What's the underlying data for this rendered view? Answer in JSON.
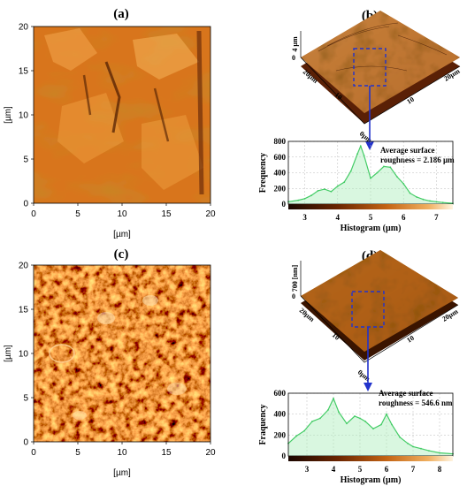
{
  "panels": {
    "a": {
      "label": "(a)",
      "xlabel": "[µm]",
      "ylabel": "[µm]",
      "xticks": [
        "0",
        "5",
        "10",
        "15",
        "20"
      ],
      "yticks": [
        "0",
        "5",
        "10",
        "15",
        "20"
      ]
    },
    "b": {
      "label": "(b)",
      "z_label": "4 µm",
      "z_zero": "0",
      "axis_left": "20µm",
      "axis_right": "20µm",
      "origin": "0µm",
      "left_mid": "10",
      "right_mid": "10",
      "annotation_line1": "Average surface",
      "annotation_line2": "roughness = 2.186 µm"
    },
    "c": {
      "label": "(c)",
      "xlabel": "[µm]",
      "ylabel": "[µm]",
      "xticks": [
        "0",
        "5",
        "10",
        "15",
        "20"
      ],
      "yticks": [
        "0",
        "5",
        "10",
        "15",
        "20"
      ]
    },
    "d": {
      "label": "(d)",
      "z_label": "700 [nm]",
      "z_zero": "0",
      "axis_left": "20µm",
      "axis_right": "20µm",
      "origin": "0µm",
      "left_mid": "10",
      "right_mid": "10",
      "annotation_line1": "Average surface",
      "annotation_line2": "roughness = 546.6 nm"
    }
  },
  "colors": {
    "surface_dark": "#3a1400",
    "surface_mid": "#b85a10",
    "surface_light": "#f4a040",
    "histogram": "#44cc66",
    "selection": "#2233cc"
  },
  "chart_data": [
    {
      "type": "area",
      "title": "",
      "xlabel": "Histogram (µm)",
      "ylabel": "Frequency",
      "xlim": [
        2.5,
        7.5
      ],
      "ylim": [
        0,
        800
      ],
      "xticks": [
        "3",
        "4",
        "5",
        "6",
        "7"
      ],
      "yticks": [
        "0",
        "200",
        "400",
        "600",
        "800"
      ],
      "grid": true,
      "x": [
        2.5,
        2.8,
        3.0,
        3.2,
        3.4,
        3.6,
        3.8,
        4.0,
        4.2,
        4.4,
        4.6,
        4.7,
        4.8,
        5.0,
        5.2,
        5.4,
        5.6,
        5.8,
        6.0,
        6.2,
        6.4,
        6.6,
        6.8,
        7.0,
        7.2,
        7.5
      ],
      "y": [
        30,
        50,
        70,
        110,
        170,
        190,
        160,
        230,
        280,
        420,
        640,
        740,
        620,
        330,
        400,
        480,
        470,
        350,
        260,
        140,
        90,
        60,
        40,
        30,
        20,
        10
      ]
    },
    {
      "type": "area",
      "title": "",
      "xlabel": "Histogram (µm)",
      "ylabel": "Fraquency",
      "xlim": [
        2.3,
        8.5
      ],
      "ylim": [
        0,
        600
      ],
      "xticks": [
        "3",
        "4",
        "5",
        "6",
        "7",
        "8"
      ],
      "yticks": [
        "0",
        "200",
        "400",
        "600"
      ],
      "grid": true,
      "x": [
        2.3,
        2.6,
        2.9,
        3.2,
        3.5,
        3.8,
        4.0,
        4.2,
        4.5,
        4.8,
        5.0,
        5.2,
        5.5,
        5.8,
        6.0,
        6.2,
        6.5,
        6.8,
        7.0,
        7.3,
        7.6,
        8.0,
        8.5
      ],
      "y": [
        120,
        190,
        240,
        330,
        360,
        440,
        550,
        420,
        310,
        380,
        360,
        330,
        260,
        300,
        400,
        300,
        180,
        120,
        90,
        70,
        50,
        30,
        20
      ]
    }
  ]
}
